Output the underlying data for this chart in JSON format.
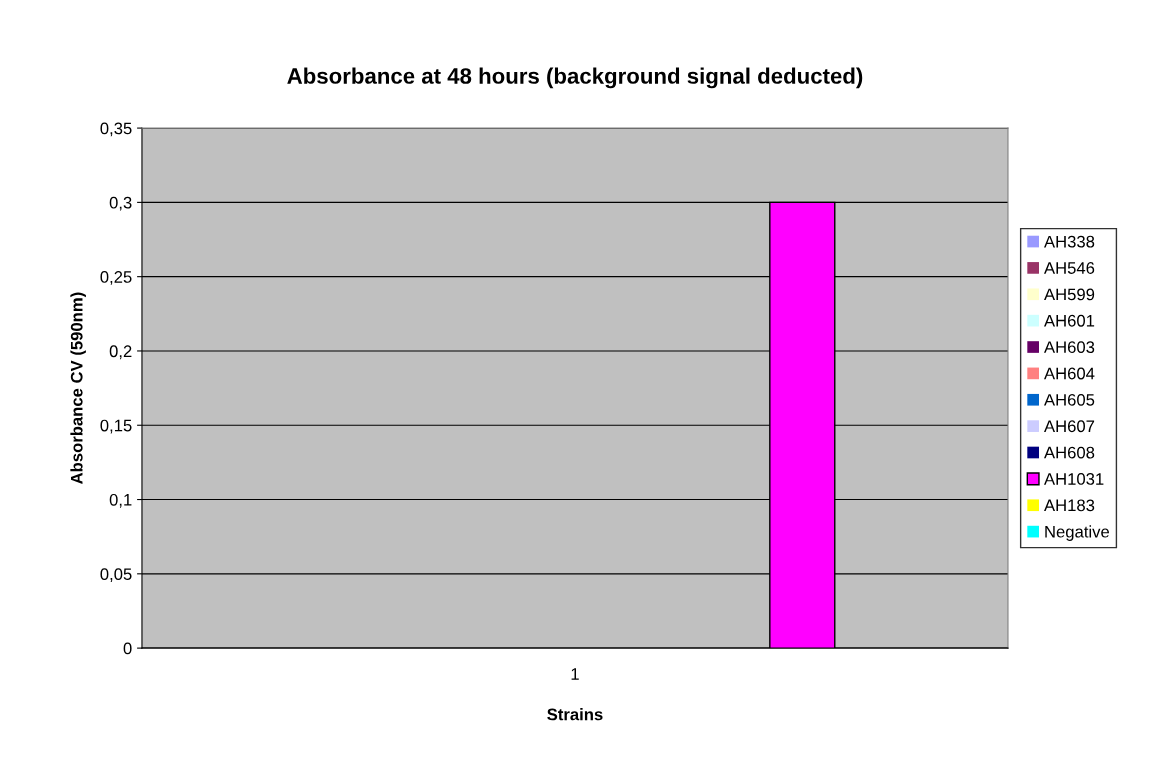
{
  "chart_data": {
    "type": "bar",
    "title": "Absorbance at 48 hours (background signal deducted)",
    "xlabel": "Strains",
    "ylabel": "Absorbance CV (590nm)",
    "categories": [
      "1"
    ],
    "series": [
      {
        "name": "AH338",
        "color": "#9999ff",
        "values": [
          0
        ]
      },
      {
        "name": "AH546",
        "color": "#993366",
        "values": [
          0
        ]
      },
      {
        "name": "AH599",
        "color": "#ffffcc",
        "values": [
          0
        ]
      },
      {
        "name": "AH601",
        "color": "#ccffff",
        "values": [
          0
        ]
      },
      {
        "name": "AH603",
        "color": "#660066",
        "values": [
          0
        ]
      },
      {
        "name": "AH604",
        "color": "#ff8080",
        "values": [
          0
        ]
      },
      {
        "name": "AH605",
        "color": "#0066cc",
        "values": [
          0
        ]
      },
      {
        "name": "AH607",
        "color": "#ccccff",
        "values": [
          0
        ]
      },
      {
        "name": "AH608",
        "color": "#000080",
        "values": [
          0
        ]
      },
      {
        "name": "AH1031",
        "color": "#ff00ff",
        "values": [
          0.3
        ]
      },
      {
        "name": "AH183",
        "color": "#ffff00",
        "values": [
          0
        ]
      },
      {
        "name": "Negative",
        "color": "#00ffff",
        "values": [
          0
        ]
      }
    ],
    "ylim": [
      0,
      0.35
    ],
    "yticks": [
      {
        "value": 0,
        "label": "0"
      },
      {
        "value": 0.05,
        "label": "0,05"
      },
      {
        "value": 0.1,
        "label": "0,1"
      },
      {
        "value": 0.15,
        "label": "0,15"
      },
      {
        "value": 0.2,
        "label": "0,2"
      },
      {
        "value": 0.25,
        "label": "0,25"
      },
      {
        "value": 0.3,
        "label": "0,3"
      },
      {
        "value": 0.35,
        "label": "0,35"
      }
    ],
    "grid": "y",
    "legend": "right"
  }
}
